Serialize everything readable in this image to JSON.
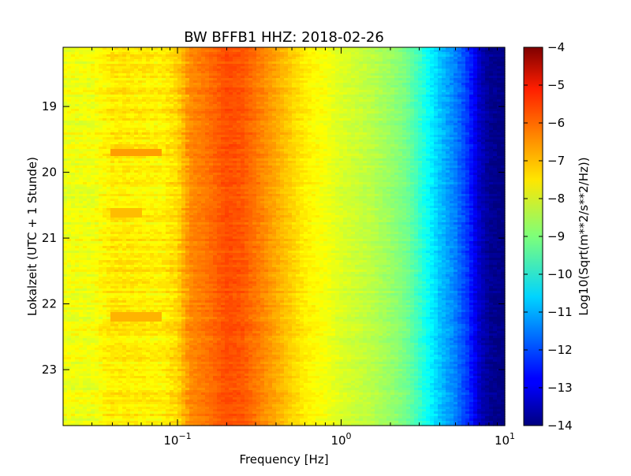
{
  "chart_data": {
    "type": "heatmap",
    "title": "BW BFFB1 HHZ: 2018-02-26",
    "xlabel": "Frequency [Hz]",
    "ylabel": "Lokalzeit (UTC + 1 Stunde)",
    "xscale": "log",
    "xlim": [
      0.02,
      10
    ],
    "ylim": [
      23.85,
      18.1
    ],
    "x_ticks": [
      {
        "value": 0.1,
        "base": "10",
        "exp": "−1"
      },
      {
        "value": 1,
        "base": "10",
        "exp": "0"
      },
      {
        "value": 10,
        "base": "10",
        "exp": "1"
      }
    ],
    "y_ticks": [
      {
        "value": 19,
        "label": "19"
      },
      {
        "value": 20,
        "label": "20"
      },
      {
        "value": 21,
        "label": "21"
      },
      {
        "value": 22,
        "label": "22"
      },
      {
        "value": 23,
        "label": "23"
      }
    ],
    "colorbar": {
      "label": "Log10(Sqrt(m**2/s**2/Hz))",
      "colormap": "jet",
      "vmin": -14,
      "vmax": -4,
      "ticks": [
        {
          "value": -4,
          "label": "−4"
        },
        {
          "value": -5,
          "label": "−5"
        },
        {
          "value": -6,
          "label": "−6"
        },
        {
          "value": -7,
          "label": "−7"
        },
        {
          "value": -8,
          "label": "−8"
        },
        {
          "value": -9,
          "label": "−9"
        },
        {
          "value": -10,
          "label": "−10"
        },
        {
          "value": -11,
          "label": "−11"
        },
        {
          "value": -12,
          "label": "−12"
        },
        {
          "value": -13,
          "label": "−13"
        },
        {
          "value": -14,
          "label": "−14"
        }
      ]
    },
    "grid": false,
    "spectrum_profile": {
      "frequencies_hz": [
        0.02,
        0.03,
        0.04,
        0.06,
        0.08,
        0.1,
        0.12,
        0.15,
        0.2,
        0.25,
        0.3,
        0.4,
        0.5,
        0.6,
        0.8,
        1.0,
        1.5,
        2.0,
        2.5,
        3.0,
        3.5,
        4.0,
        5.0,
        6.0,
        7.0,
        8.0,
        10.0
      ],
      "log10_amplitude": [
        -7.9,
        -7.9,
        -7.55,
        -7.6,
        -7.65,
        -7.35,
        -6.6,
        -6.4,
        -6.0,
        -6.1,
        -6.4,
        -6.9,
        -7.3,
        -7.6,
        -7.85,
        -8.1,
        -8.4,
        -8.75,
        -9.1,
        -9.7,
        -10.3,
        -10.8,
        -11.5,
        -12.3,
        -13.3,
        -13.8,
        -14.0
      ]
    },
    "notable_features": [
      {
        "time_hours": 19.7,
        "freq_hz": [
          0.04,
          0.08
        ],
        "log10_amplitude": -6.8
      },
      {
        "time_hours": 22.2,
        "freq_hz": [
          0.04,
          0.08
        ],
        "log10_amplitude": -7.0
      },
      {
        "time_hours": 20.6,
        "freq_hz": [
          0.04,
          0.06
        ],
        "log10_amplitude": -7.1
      }
    ]
  }
}
